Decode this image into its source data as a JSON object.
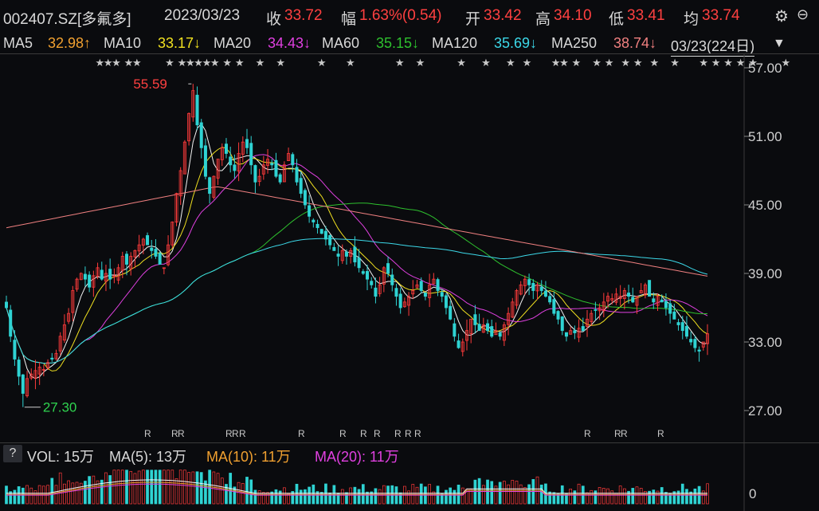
{
  "header": {
    "code": "002407.SZ[多氟多]",
    "date": "2023/03/23",
    "close_label": "收",
    "close_value": "33.72",
    "change_label": "幅",
    "change_value": "1.63%(0.54)",
    "open_label": "开",
    "open_value": "33.42",
    "high_label": "高",
    "high_value": "34.10",
    "low_label": "低",
    "low_value": "33.41",
    "avg_label": "均",
    "avg_value": "33.74"
  },
  "ma": {
    "ma5_label": "MA5",
    "ma5_value": "32.98↑",
    "ma10_label": "MA10",
    "ma10_value": "33.17↓",
    "ma20_label": "MA20",
    "ma20_value": "34.43↓",
    "ma60_label": "MA60",
    "ma60_value": "35.15↓",
    "ma120_label": "MA120",
    "ma120_value": "35.69↓",
    "ma250_label": "MA250",
    "ma250_value": "38.74↓",
    "range": "03/23(224日)"
  },
  "volume": {
    "help": "?",
    "vol_label": "VOL: 15万",
    "ma5_label": "MA(5): 13万",
    "ma10_label": "MA(10): 11万",
    "ma20_label": "MA(20): 11万",
    "axis_zero": "0"
  },
  "colors": {
    "up": "#ff3b3b",
    "down": "#2fd3d3",
    "ma5": "#f4f4f4",
    "ma10": "#f0e020",
    "ma20": "#e040e0",
    "ma60": "#2ec02e",
    "ma120": "#3cd8e8",
    "ma250": "#f08080",
    "close": "#ff4040",
    "muted": "#d8d8d8"
  },
  "chart_data": {
    "type": "candlestick",
    "y_ticks": [
      "57.00",
      "51.00",
      "45.00",
      "39.00",
      "33.00",
      "27.00"
    ],
    "ylim": [
      26,
      58
    ],
    "high_annotation": "55.59",
    "low_annotation": "27.30",
    "closes": [
      36.0,
      33.5,
      31.5,
      30.0,
      28.5,
      29.8,
      30.2,
      30.5,
      30.8,
      30.6,
      31.2,
      31.5,
      32.0,
      33.5,
      34.5,
      35.5,
      37.5,
      38.5,
      39.0,
      38.5,
      37.8,
      38.8,
      39.5,
      38.5,
      39.0,
      38.5,
      38.8,
      39.5,
      40.5,
      39.8,
      40.5,
      41.0,
      41.5,
      42.0,
      41.5,
      41.0,
      40.5,
      39.8,
      39.5,
      41.5,
      43.5,
      46.0,
      48.0,
      50.5,
      53.0,
      55.0,
      52.0,
      50.0,
      47.5,
      46.0,
      47.5,
      49.0,
      50.0,
      49.5,
      48.5,
      48.0,
      49.5,
      50.5,
      50.0,
      48.5,
      47.0,
      47.5,
      48.5,
      49.0,
      48.5,
      47.5,
      47.0,
      48.5,
      49.5,
      48.5,
      47.0,
      46.0,
      45.0,
      44.0,
      43.5,
      43.0,
      42.5,
      42.0,
      41.5,
      41.0,
      40.5,
      41.0,
      40.5,
      41.0,
      40.0,
      39.5,
      39.0,
      38.5,
      38.0,
      37.0,
      38.0,
      39.5,
      39.0,
      38.0,
      37.0,
      36.0,
      36.5,
      37.0,
      37.5,
      38.0,
      37.5,
      37.0,
      38.0,
      38.5,
      37.5,
      37.0,
      36.0,
      35.0,
      33.5,
      32.5,
      33.0,
      34.0,
      35.0,
      34.5,
      34.0,
      34.5,
      34.0,
      33.5,
      34.0,
      33.5,
      34.5,
      35.5,
      36.5,
      37.5,
      38.0,
      38.5,
      38.0,
      37.5,
      38.0,
      37.5,
      37.0,
      36.5,
      35.5,
      35.0,
      34.0,
      33.5,
      34.0,
      33.8,
      34.2,
      34.0,
      35.0,
      35.5,
      35.8,
      36.0,
      36.5,
      37.0,
      36.8,
      37.2,
      37.0,
      37.5,
      37.0,
      36.5,
      37.0,
      37.5,
      38.0,
      37.0,
      36.5,
      37.0,
      36.5,
      36.0,
      35.5,
      35.0,
      34.5,
      34.0,
      33.5,
      33.0,
      32.5,
      32.2,
      33.0,
      33.72
    ]
  }
}
